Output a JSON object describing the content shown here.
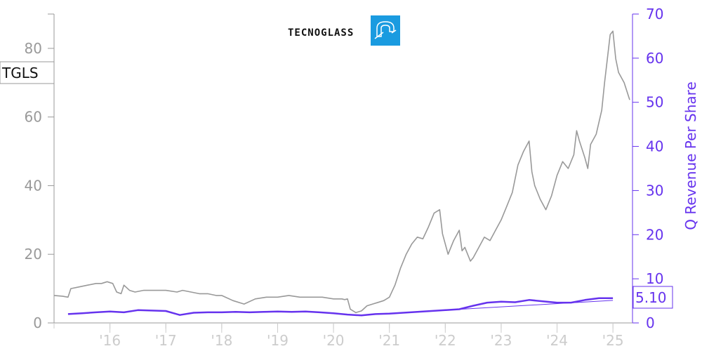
{
  "logo": {
    "text": "TECNOGLASS",
    "accent_color": "#1a9be0"
  },
  "ticker": "TGLS",
  "chart_data": {
    "type": "line",
    "xlabel": "",
    "ylabel_left": "",
    "ylabel_right": "Q Revenue Per Share",
    "x_tick_labels": [
      "'16",
      "'17",
      "'18",
      "'19",
      "'20",
      "'21",
      "'22",
      "'23",
      "'24",
      "'25"
    ],
    "x_tick_years": [
      2016,
      2017,
      2018,
      2019,
      2020,
      2021,
      2022,
      2023,
      2024,
      2025
    ],
    "xlim": [
      2015.0,
      2025.35
    ],
    "ylim_left": [
      0,
      90
    ],
    "left_ticks": [
      0,
      20,
      40,
      60,
      80
    ],
    "ylim_right": [
      0,
      70
    ],
    "right_ticks": [
      0,
      10,
      20,
      30,
      40,
      50,
      60,
      70
    ],
    "grid": false,
    "series": [
      {
        "name": "TGLS",
        "axis": "left",
        "color": "#999999",
        "x": [
          2015.0,
          2015.15,
          2015.25,
          2015.3,
          2015.45,
          2015.6,
          2015.75,
          2015.85,
          2015.95,
          2016.05,
          2016.12,
          2016.2,
          2016.25,
          2016.35,
          2016.45,
          2016.6,
          2016.8,
          2017.0,
          2017.2,
          2017.3,
          2017.45,
          2017.6,
          2017.75,
          2017.9,
          2018.0,
          2018.2,
          2018.4,
          2018.6,
          2018.8,
          2019.0,
          2019.2,
          2019.4,
          2019.6,
          2019.8,
          2020.0,
          2020.1,
          2020.15,
          2020.2,
          2020.25,
          2020.3,
          2020.4,
          2020.5,
          2020.6,
          2020.7,
          2020.8,
          2020.9,
          2021.0,
          2021.1,
          2021.2,
          2021.3,
          2021.4,
          2021.5,
          2021.6,
          2021.7,
          2021.8,
          2021.9,
          2021.95,
          2022.05,
          2022.15,
          2022.25,
          2022.3,
          2022.35,
          2022.45,
          2022.5,
          2022.6,
          2022.7,
          2022.8,
          2022.9,
          2023.0,
          2023.1,
          2023.2,
          2023.3,
          2023.4,
          2023.5,
          2023.55,
          2023.6,
          2023.7,
          2023.8,
          2023.9,
          2024.0,
          2024.1,
          2024.2,
          2024.3,
          2024.35,
          2024.4,
          2024.5,
          2024.55,
          2024.6,
          2024.7,
          2024.8,
          2024.85,
          2024.9,
          2024.95,
          2025.0,
          2025.05,
          2025.1,
          2025.2,
          2025.3
        ],
        "y": [
          8,
          7.8,
          7.5,
          10,
          10.5,
          11,
          11.5,
          11.5,
          12,
          11.5,
          9,
          8.5,
          11,
          9.5,
          9,
          9.5,
          9.5,
          9.5,
          9,
          9.5,
          9,
          8.5,
          8.5,
          8,
          8,
          6.5,
          5.5,
          7,
          7.5,
          7.5,
          8,
          7.5,
          7.5,
          7.5,
          7,
          7,
          7,
          6.8,
          7,
          4,
          3,
          3.5,
          5,
          5.5,
          6,
          6.5,
          7.5,
          11,
          16,
          20,
          23,
          25,
          24.5,
          28,
          32,
          33,
          26,
          20,
          24,
          27,
          21,
          22,
          18,
          19,
          22,
          25,
          24,
          27,
          30,
          34,
          38,
          46,
          50,
          53,
          44,
          40,
          36,
          33,
          37,
          43,
          47,
          45,
          49,
          56,
          53,
          48,
          45,
          52,
          55,
          62,
          70,
          77,
          84,
          85,
          77,
          73,
          70,
          65
        ]
      },
      {
        "name": "Q Revenue Per Share",
        "axis": "right",
        "color": "#6633ee",
        "x": [
          2015.25,
          2015.5,
          2015.75,
          2016.0,
          2016.25,
          2016.5,
          2016.75,
          2017.0,
          2017.25,
          2017.5,
          2017.75,
          2018.0,
          2018.25,
          2018.5,
          2018.75,
          2019.0,
          2019.25,
          2019.5,
          2019.75,
          2020.0,
          2020.25,
          2020.5,
          2020.75,
          2021.0,
          2021.25,
          2021.5,
          2021.75,
          2022.0,
          2022.25,
          2022.5,
          2022.75,
          2023.0,
          2023.25,
          2023.5,
          2023.75,
          2024.0,
          2024.25,
          2024.5,
          2024.75,
          2025.0
        ],
        "y": [
          2.0,
          2.2,
          2.4,
          2.6,
          2.4,
          2.9,
          2.8,
          2.7,
          1.8,
          2.3,
          2.4,
          2.4,
          2.5,
          2.4,
          2.5,
          2.6,
          2.5,
          2.6,
          2.4,
          2.2,
          1.9,
          1.7,
          2.0,
          2.1,
          2.3,
          2.5,
          2.7,
          2.9,
          3.1,
          3.9,
          4.6,
          4.8,
          4.7,
          5.2,
          4.9,
          4.6,
          4.6,
          5.2,
          5.6,
          5.6
        ]
      },
      {
        "name": "",
        "axis": "right",
        "color": "#6633ee",
        "x": [
          2020.5,
          2025.0
        ],
        "y": [
          1.8,
          5.1
        ]
      }
    ],
    "labels": {
      "left_box": "TGLS",
      "right_box": "5.10"
    }
  }
}
